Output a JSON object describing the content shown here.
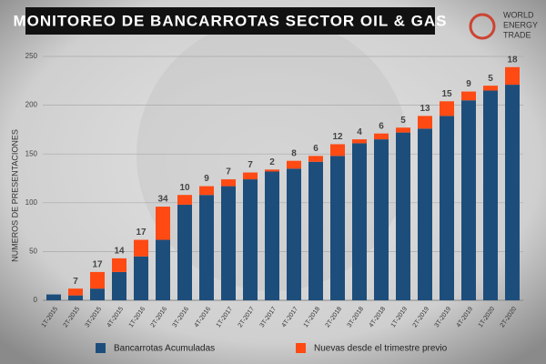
{
  "logo": [
    "WORLD",
    "ENERGY",
    "TRADE"
  ],
  "chart_data": {
    "type": "bar",
    "stacked": true,
    "title": "MONITOREO DE BANCARROTAS SECTOR OIL & GAS",
    "y_label": "NUMEROS DE PRESENTACIONES",
    "categories": [
      "1T-2015",
      "2T-2015",
      "3T-2015",
      "4T-2015",
      "1T-2016",
      "2T-2016",
      "3T-2016",
      "4T-2016",
      "1T-2017",
      "2T-2017",
      "3T-2017",
      "4T-2017",
      "1T-2018",
      "2T-2018",
      "3T-2018",
      "4T-2018",
      "1T-2019",
      "2T-2019",
      "3T-2019",
      "4T-2019",
      "1T-2020",
      "2T-2020"
    ],
    "series": [
      {
        "name": "Bancarrotas Acumuladas",
        "color": "#1d4e7b",
        "values": [
          6,
          5,
          12,
          29,
          45,
          62,
          98,
          108,
          117,
          124,
          132,
          135,
          142,
          148,
          161,
          165,
          172,
          176,
          189,
          205,
          215,
          221
        ]
      },
      {
        "name": "Nuevas desde el trimestre previo",
        "color": "#ff4a14",
        "show_labels": true,
        "values": [
          null,
          7,
          17,
          14,
          17,
          34,
          10,
          9,
          7,
          7,
          2,
          8,
          6,
          12,
          4,
          6,
          5,
          13,
          15,
          9,
          5,
          18
        ]
      }
    ],
    "ylim": [
      0,
      250
    ],
    "yticks": [
      0,
      50,
      100,
      150,
      200,
      250
    ],
    "grid": true,
    "legend": "bottom"
  }
}
